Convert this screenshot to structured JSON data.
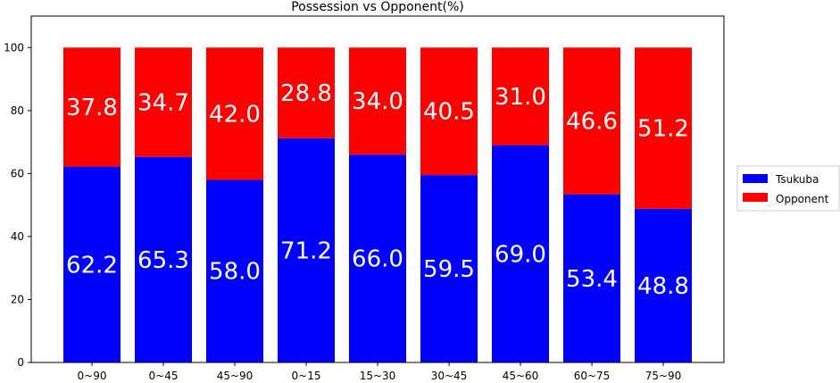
{
  "chart_data": {
    "type": "bar",
    "stacked": true,
    "title": "Possession vs Opponent(%)",
    "xlabel": "",
    "ylabel": "",
    "categories": [
      "0~90",
      "0~45",
      "45~90",
      "0~15",
      "15~30",
      "30~45",
      "45~60",
      "60~75",
      "75~90"
    ],
    "series": [
      {
        "name": "Tsukuba",
        "color": "#0000ff",
        "values": [
          62.2,
          65.3,
          58.0,
          71.2,
          66.0,
          59.5,
          69.0,
          53.4,
          48.8
        ]
      },
      {
        "name": "Opponent",
        "color": "#ff0000",
        "values": [
          37.8,
          34.7,
          42.0,
          28.8,
          34.0,
          40.5,
          31.0,
          46.6,
          51.2
        ]
      }
    ],
    "data_labels": {
      "Tsukuba": [
        "62.2",
        "65.3",
        "58.0",
        "71.2",
        "66.0",
        "59.5",
        "69.0",
        "53.4",
        "48.8"
      ],
      "Opponent": [
        "37.8",
        "34.7",
        "42.0",
        "28.8",
        "34.0",
        "40.5",
        "31.0",
        "46.6",
        "51.2"
      ]
    },
    "ylim": [
      0,
      110
    ],
    "yticks": [
      0,
      20,
      40,
      60,
      80,
      100
    ],
    "grid": false,
    "legend_position": "right"
  }
}
